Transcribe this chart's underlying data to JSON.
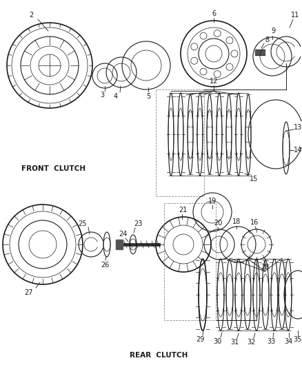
{
  "bg_color": "#ffffff",
  "line_color": "#1a1a1a",
  "lw_thin": 0.5,
  "lw_med": 0.8,
  "lw_thick": 1.2,
  "font_size": 7,
  "font_size_section": 7.5
}
